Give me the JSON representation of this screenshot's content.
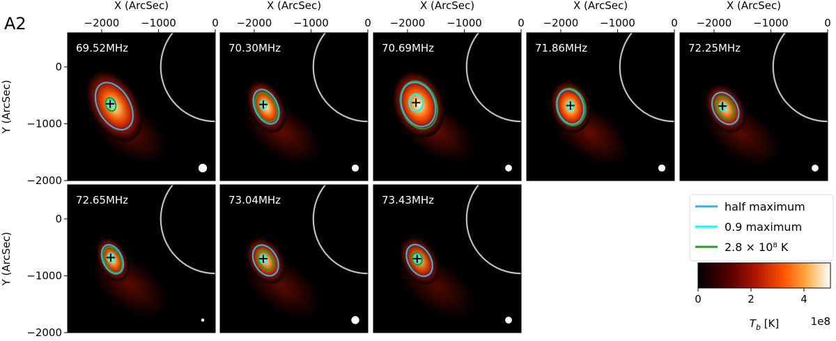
{
  "figure": {
    "label": "A2"
  },
  "chart_data": {
    "type": "heatmap",
    "xlabel": "X (ArcSec)",
    "ylabel": "Y (ArcSec)",
    "xlim": [
      -2600,
      0
    ],
    "ylim": [
      -2000,
      600
    ],
    "x_ticks": [
      -2000,
      -1000,
      0
    ],
    "x_tick_labels": [
      "−2000",
      "−1000",
      "0"
    ],
    "y_ticks": [
      0,
      -1000,
      -2000
    ],
    "y_tick_labels": [
      "0",
      "−1000",
      "−2000"
    ],
    "solar_limb_radius_arcsec": 960,
    "panels": [
      {
        "label": "69.52MHz",
        "peak": [
          -1850,
          -650
        ],
        "intensity": 0.82,
        "half_max": {
          "cx": -1780,
          "cy": -690,
          "rx": 280,
          "ry": 450,
          "rot": -30
        },
        "green": {
          "cx": -1840,
          "cy": -660,
          "rx": 85,
          "ry": 120,
          "rot": -20
        },
        "beam_r": 75
      },
      {
        "label": "70.30MHz",
        "peak": [
          -1840,
          -660
        ],
        "intensity": 0.9,
        "half_max": {
          "cx": -1790,
          "cy": -700,
          "rx": 200,
          "ry": 320,
          "rot": -25
        },
        "green": {
          "cx": -1790,
          "cy": -710,
          "rx": 170,
          "ry": 270,
          "rot": -25
        },
        "beam_r": 62
      },
      {
        "label": "70.69MHz",
        "peak": [
          -1850,
          -630
        ],
        "intensity": 1.0,
        "half_max": {
          "cx": -1810,
          "cy": -660,
          "rx": 290,
          "ry": 400,
          "rot": -20
        },
        "green": {
          "cx": -1800,
          "cy": -670,
          "rx": 310,
          "ry": 430,
          "rot": -20
        },
        "beam_r": 60
      },
      {
        "label": "71.86MHz",
        "peak": [
          -1830,
          -680
        ],
        "intensity": 0.95,
        "half_max": {
          "cx": -1830,
          "cy": -700,
          "rx": 230,
          "ry": 310,
          "rot": -15
        },
        "green": {
          "cx": -1820,
          "cy": -705,
          "rx": 250,
          "ry": 330,
          "rot": -15
        },
        "beam_r": 62
      },
      {
        "label": "72.25MHz",
        "peak": [
          -1850,
          -690
        ],
        "intensity": 0.75,
        "half_max": {
          "cx": -1800,
          "cy": -730,
          "rx": 210,
          "ry": 300,
          "rot": -30
        },
        "green": {
          "cx": -1810,
          "cy": -720,
          "rx": 140,
          "ry": 210,
          "rot": -30
        },
        "beam_r": 60
      },
      {
        "label": "72.65MHz",
        "peak": [
          -1840,
          -680
        ],
        "intensity": 0.78,
        "half_max": {
          "cx": -1810,
          "cy": -710,
          "rx": 170,
          "ry": 270,
          "rot": -25
        },
        "green": {
          "cx": -1805,
          "cy": -720,
          "rx": 145,
          "ry": 240,
          "rot": -25
        },
        "beam_r": 28
      },
      {
        "label": "73.04MHz",
        "peak": [
          -1840,
          -700
        ],
        "intensity": 0.72,
        "half_max": {
          "cx": -1800,
          "cy": -730,
          "rx": 200,
          "ry": 290,
          "rot": -30
        },
        "green": {
          "cx": -1800,
          "cy": -725,
          "rx": 120,
          "ry": 190,
          "rot": -30
        },
        "beam_r": 70
      },
      {
        "label": "73.43MHz",
        "peak": [
          -1830,
          -700
        ],
        "intensity": 0.6,
        "half_max": {
          "cx": -1790,
          "cy": -730,
          "rx": 200,
          "ry": 300,
          "rot": -30
        },
        "green": {
          "cx": -1830,
          "cy": -700,
          "rx": 80,
          "ry": 110,
          "rot": -25
        },
        "beam_r": 60
      }
    ],
    "legend": {
      "entries": [
        {
          "label": "half maximum",
          "color": "#2ab4e8"
        },
        {
          "label": "0.9 maximum",
          "color": "#00ffff"
        },
        {
          "label": "2.8 × 10⁸ K",
          "color": "#1e9d1e"
        }
      ]
    },
    "colorbar": {
      "colormap": "gist_heat",
      "range": [
        0,
        500000000
      ],
      "ticks": [
        0,
        2,
        4
      ],
      "label": "T_b [K]",
      "exponent": "1e8"
    },
    "colors": {
      "limb": "#c0c0c0",
      "half_max": "#2ab4e8",
      "nine_tenths_max": "#00ffff",
      "threshold": "#1e9d1e"
    }
  }
}
